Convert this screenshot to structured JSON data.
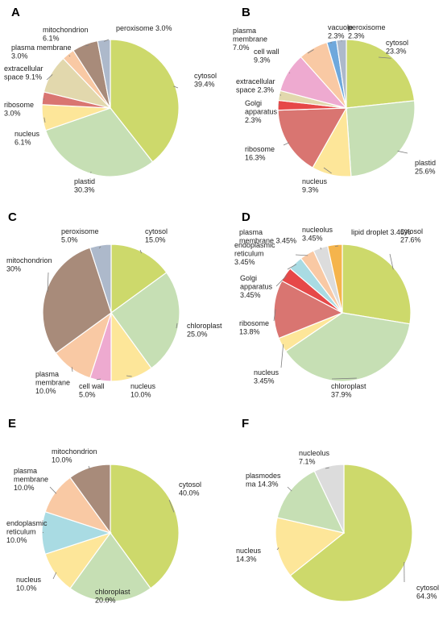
{
  "chart_data": [
    {
      "type": "pie",
      "panel_label": "A",
      "slices": [
        {
          "label": [
            "cytosol",
            "39.4%"
          ],
          "value": 39.4,
          "color": "#cdd96b"
        },
        {
          "label": [
            "plastid",
            "30.3%"
          ],
          "value": 30.3,
          "color": "#c6dfb4"
        },
        {
          "label": [
            "nucleus",
            "6.1%"
          ],
          "value": 6.1,
          "color": "#fde699"
        },
        {
          "label": [
            "ribosome",
            "3.0%"
          ],
          "value": 3.0,
          "color": "#d97571"
        },
        {
          "label": [
            "extracellular",
            "space 9.1%"
          ],
          "value": 9.1,
          "color": "#e2d8ad"
        },
        {
          "label": [
            "plasma membrane",
            "3.0%"
          ],
          "value": 3.0,
          "color": "#f9c9a4"
        },
        {
          "label": [
            "mitochondrion",
            "6.1%"
          ],
          "value": 6.1,
          "color": "#a88b7a"
        },
        {
          "label": [
            "peroxisome 3.0%"
          ],
          "value": 3.0,
          "color": "#adb9cb"
        }
      ]
    },
    {
      "type": "pie",
      "panel_label": "B",
      "slices": [
        {
          "label": [
            "cytosol",
            "23.3%"
          ],
          "value": 23.3,
          "color": "#cdd96b"
        },
        {
          "label": [
            "plastid",
            "25.6%"
          ],
          "value": 25.6,
          "color": "#c6dfb4"
        },
        {
          "label": [
            "nucleus",
            "9.3%"
          ],
          "value": 9.3,
          "color": "#fde699"
        },
        {
          "label": [
            "ribosome",
            "16.3%"
          ],
          "value": 16.3,
          "color": "#d97571"
        },
        {
          "label": [
            "Golgi",
            "apparatus",
            "2.3%"
          ],
          "value": 2.3,
          "color": "#e64848"
        },
        {
          "label": [
            "extracellular",
            "space 2.3%"
          ],
          "value": 2.3,
          "color": "#e2d8ad"
        },
        {
          "label": [
            "cell wall",
            "9.3%"
          ],
          "value": 9.3,
          "color": "#eeaad0"
        },
        {
          "label": [
            "plasma",
            "membrane",
            "7.0%"
          ],
          "value": 7.0,
          "color": "#f9c9a4"
        },
        {
          "label": [
            "vacuole",
            "2.3%"
          ],
          "value": 2.3,
          "color": "#6fa8dc"
        },
        {
          "label": [
            "peroxisome",
            "2.3%"
          ],
          "value": 2.3,
          "color": "#adb9cb"
        }
      ]
    },
    {
      "type": "pie",
      "panel_label": "C",
      "slices": [
        {
          "label": [
            "cytosol",
            "15.0%"
          ],
          "value": 15.0,
          "color": "#cdd96b"
        },
        {
          "label": [
            "chloroplast",
            "25.0%"
          ],
          "value": 25.0,
          "color": "#c6dfb4"
        },
        {
          "label": [
            "nucleus",
            "10.0%"
          ],
          "value": 10.0,
          "color": "#fde699"
        },
        {
          "label": [
            "cell wall",
            "5.0%"
          ],
          "value": 5.0,
          "color": "#eeaad0"
        },
        {
          "label": [
            "plasma",
            "membrane",
            "10.0%"
          ],
          "value": 10.0,
          "color": "#f9c9a4"
        },
        {
          "label": [
            "mitochondrion",
            "30%"
          ],
          "value": 30.0,
          "color": "#a88b7a"
        },
        {
          "label": [
            "peroxisome",
            "5.0%"
          ],
          "value": 5.0,
          "color": "#adb9cb"
        }
      ]
    },
    {
      "type": "pie",
      "panel_label": "D",
      "slices": [
        {
          "label": [
            "cytosol",
            "27.6%"
          ],
          "value": 27.6,
          "color": "#cdd96b"
        },
        {
          "label": [
            "chloroplast",
            "37.9%"
          ],
          "value": 37.9,
          "color": "#c6dfb4"
        },
        {
          "label": [
            "nucleus",
            "3.45%"
          ],
          "value": 3.45,
          "color": "#fde699"
        },
        {
          "label": [
            "ribosome",
            "13.8%"
          ],
          "value": 13.8,
          "color": "#d97571"
        },
        {
          "label": [
            "Golgi",
            "apparatus",
            "3.45%"
          ],
          "value": 3.45,
          "color": "#e64848"
        },
        {
          "label": [
            "endoplasmic",
            "reticulum",
            "3.45%"
          ],
          "value": 3.45,
          "color": "#a9dbe3"
        },
        {
          "label": [
            "plasma",
            "membrane 3.45%"
          ],
          "value": 3.45,
          "color": "#f9c9a4"
        },
        {
          "label": [
            "nucleolus",
            "3.45%"
          ],
          "value": 3.45,
          "color": "#dcdcdc"
        },
        {
          "label": [
            "lipid droplet 3.45%"
          ],
          "value": 3.45,
          "color": "#f5b44c"
        }
      ]
    },
    {
      "type": "pie",
      "panel_label": "E",
      "slices": [
        {
          "label": [
            "cytosol",
            "40.0%"
          ],
          "value": 40.0,
          "color": "#cdd96b"
        },
        {
          "label": [
            "chloroplast",
            "20.0%"
          ],
          "value": 20.0,
          "color": "#c6dfb4"
        },
        {
          "label": [
            "nucleus",
            "10.0%"
          ],
          "value": 10.0,
          "color": "#fde699"
        },
        {
          "label": [
            "endoplasmic",
            "reticulum",
            "10.0%"
          ],
          "value": 10.0,
          "color": "#a9dbe3"
        },
        {
          "label": [
            "plasma",
            "membrane",
            "10.0%"
          ],
          "value": 10.0,
          "color": "#f9c9a4"
        },
        {
          "label": [
            "mitochondrion",
            "10.0%"
          ],
          "value": 10.0,
          "color": "#a88b7a"
        }
      ]
    },
    {
      "type": "pie",
      "panel_label": "F",
      "slices": [
        {
          "label": [
            "cytosol",
            "64.3%"
          ],
          "value": 64.3,
          "color": "#cdd96b"
        },
        {
          "label": [
            "nucleus",
            "14.3%"
          ],
          "value": 14.3,
          "color": "#fde699"
        },
        {
          "label": [
            "plasmodes",
            "ma 14.3%"
          ],
          "value": 14.3,
          "color": "#c6dfb4"
        },
        {
          "label": [
            "nucleolus",
            "7.1%"
          ],
          "value": 7.1,
          "color": "#dcdcdc"
        }
      ]
    }
  ]
}
